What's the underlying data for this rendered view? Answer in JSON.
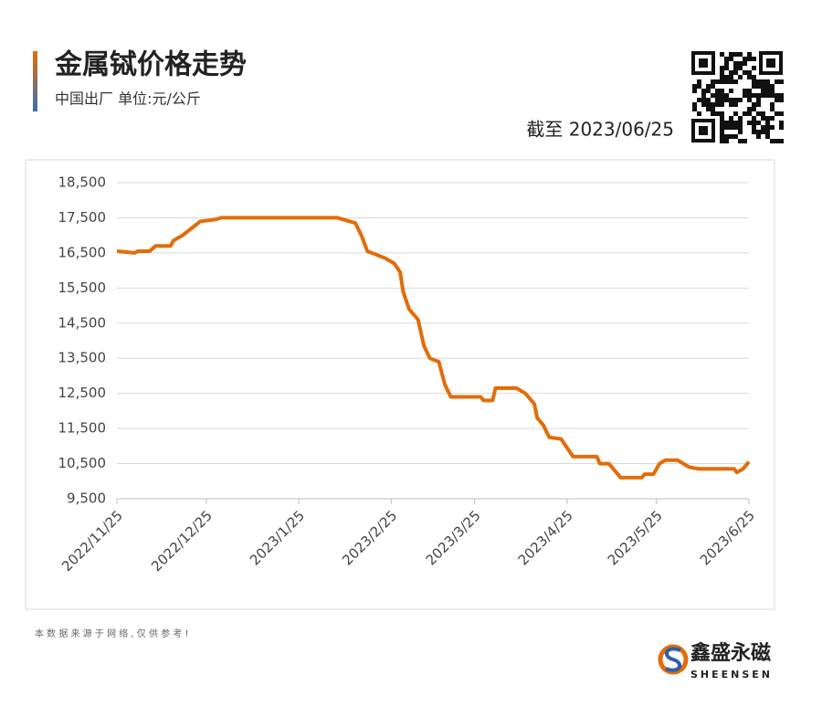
{
  "chart_data": {
    "type": "line",
    "title": "金属铽价格走势",
    "subtitle": "中国出厂 单位:元/公斤",
    "date_note": "截至 2023/06/25",
    "source_note": "本 数 据 来 源 于 网 络 , 仅 供 参 考 !",
    "brand": "鑫盛永磁",
    "brand_en": "SHEENSEN",
    "color": "#e36c0a",
    "grid": true,
    "x": [
      "2022/11/25",
      "2022/12/1",
      "2022/12/2",
      "2022/12/6",
      "2022/12/8",
      "2022/12/13",
      "2022/12/14",
      "2022/12/17",
      "2022/12/20",
      "2022/12/23",
      "2022/12/28",
      "2022/12/30",
      "2023/2/7",
      "2023/2/11",
      "2023/2/13",
      "2023/2/15",
      "2023/2/17",
      "2023/2/20",
      "2023/2/23",
      "2023/2/24",
      "2023/2/26",
      "2023/2/28",
      "2023/3/1",
      "2023/3/3",
      "2023/3/6",
      "2023/3/8",
      "2023/3/10",
      "2023/3/13",
      "2023/3/15",
      "2023/3/17",
      "2023/3/27",
      "2023/3/28",
      "2023/3/31",
      "2023/4/1",
      "2023/4/8",
      "2023/4/11",
      "2023/4/14",
      "2023/4/15",
      "2023/4/17",
      "2023/4/19",
      "2023/4/23",
      "2023/4/25",
      "2023/4/27",
      "2023/5/5",
      "2023/5/6",
      "2023/5/9",
      "2023/5/11",
      "2023/5/13",
      "2023/5/20",
      "2023/5/21",
      "2023/5/24",
      "2023/5/26",
      "2023/5/28",
      "2023/6/1",
      "2023/6/3",
      "2023/6/5",
      "2023/6/8",
      "2023/6/20",
      "2023/6/21",
      "2023/6/23",
      "2023/6/25"
    ],
    "values": [
      16550,
      16500,
      16550,
      16550,
      16700,
      16700,
      16850,
      17000,
      17200,
      17400,
      17450,
      17500,
      17500,
      17400,
      17350,
      17000,
      16550,
      16450,
      16350,
      16300,
      16200,
      15950,
      15400,
      14900,
      14600,
      13850,
      13500,
      13400,
      12750,
      12400,
      12400,
      12300,
      12300,
      12650,
      12650,
      12500,
      12200,
      11800,
      11600,
      11250,
      11200,
      10950,
      10700,
      10700,
      10500,
      10500,
      10300,
      10100,
      10100,
      10200,
      10200,
      10500,
      10600,
      10600,
      10500,
      10400,
      10350,
      10350,
      10250,
      10350,
      10550
    ],
    "xlim": [
      "2022/11/25",
      "2023/6/25"
    ],
    "xticks": [
      "2022/11/25",
      "2022/12/25",
      "2023/1/25",
      "2023/2/25",
      "2023/3/25",
      "2023/4/25",
      "2023/5/25",
      "2023/6/25"
    ],
    "ylim": [
      9500,
      18500
    ],
    "yticks": [
      {
        "value": 9500,
        "label": "9,500"
      },
      {
        "value": 10500,
        "label": "10,500"
      },
      {
        "value": 11500,
        "label": "11,500"
      },
      {
        "value": 12500,
        "label": "12,500"
      },
      {
        "value": 13500,
        "label": "13,500"
      },
      {
        "value": 14500,
        "label": "14,500"
      },
      {
        "value": 15500,
        "label": "15,500"
      },
      {
        "value": 16500,
        "label": "16,500"
      },
      {
        "value": 17500,
        "label": "17,500"
      },
      {
        "value": 18500,
        "label": "18,500"
      }
    ]
  }
}
